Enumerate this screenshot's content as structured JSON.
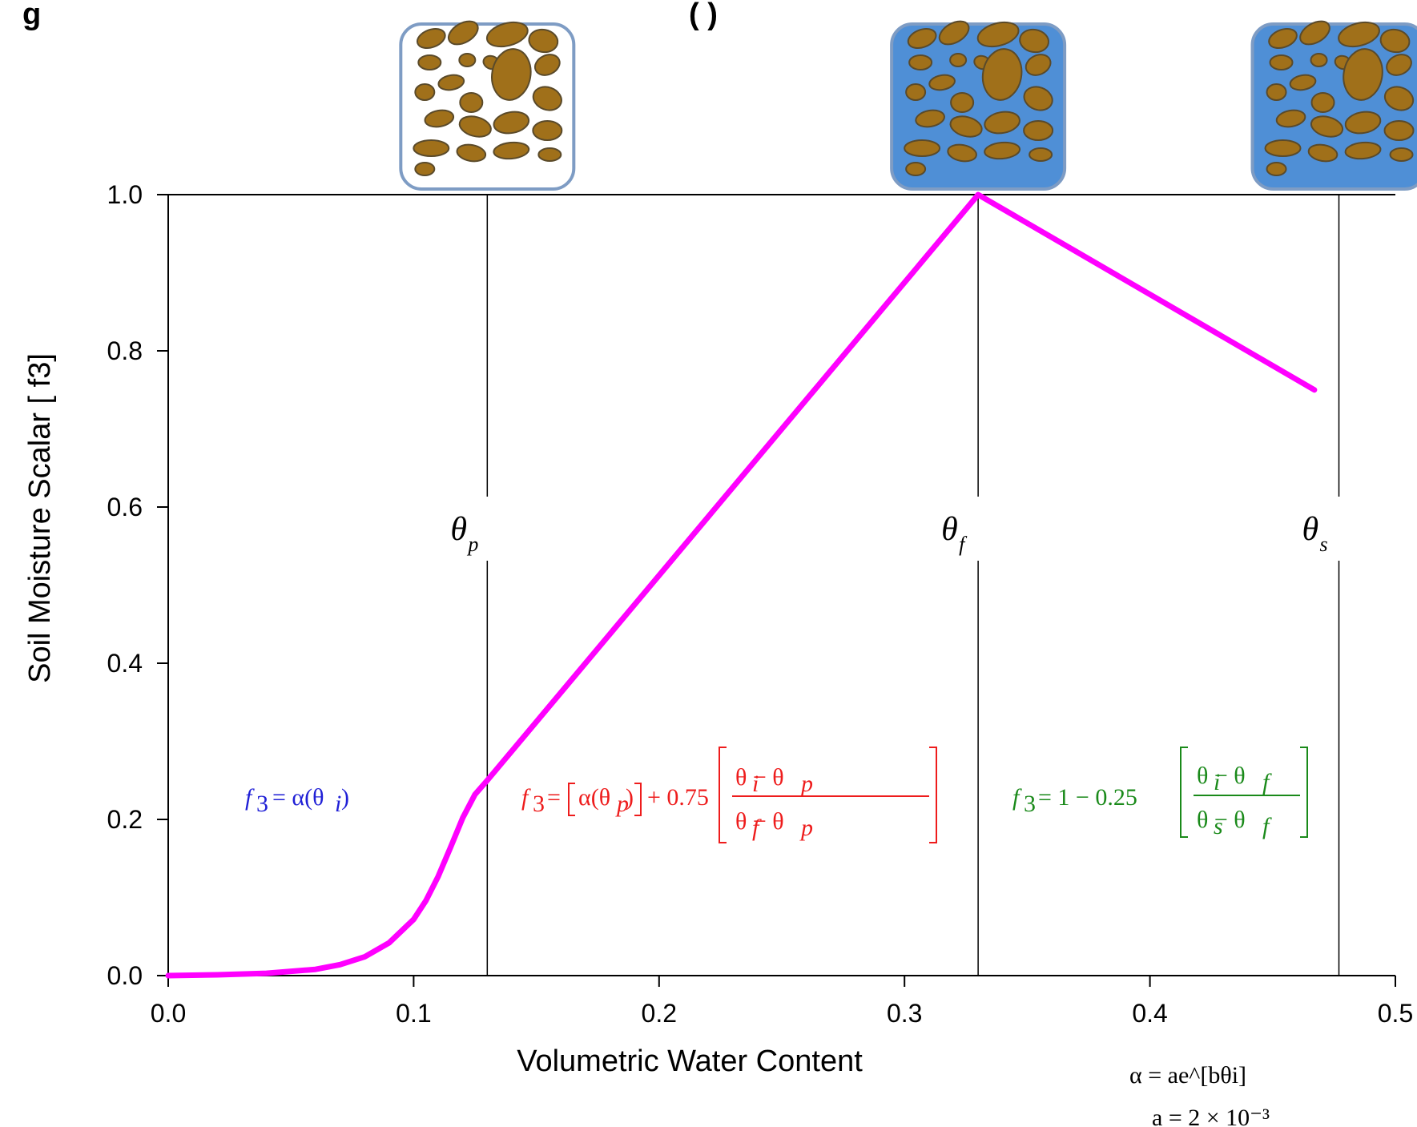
{
  "title_fragment": "g",
  "title_fragment_paren": "(        )",
  "chart_data": {
    "type": "line",
    "xlabel": "Volumetric Water Content",
    "ylabel": "Soil Moisture Scalar  [ f3]",
    "xlim": [
      0,
      0.5
    ],
    "ylim": [
      0,
      1.0
    ],
    "x_ticks": [
      "0.0",
      "0.1",
      "0.2",
      "0.3",
      "0.4",
      "0.5"
    ],
    "y_ticks": [
      "0.0",
      "0.2",
      "0.4",
      "0.6",
      "0.8",
      "1.0"
    ],
    "grid": false,
    "series": [
      {
        "color": "#ff00ff",
        "x": [
          0.0,
          0.02,
          0.04,
          0.06,
          0.07,
          0.08,
          0.09,
          0.1,
          0.105,
          0.11,
          0.115,
          0.12,
          0.125,
          0.13,
          0.33,
          0.467
        ],
        "y": [
          0.0,
          0.001,
          0.003,
          0.008,
          0.014,
          0.024,
          0.042,
          0.072,
          0.096,
          0.127,
          0.164,
          0.202,
          0.232,
          0.25,
          1.0,
          0.75
        ]
      }
    ],
    "thresholds": [
      {
        "x": 0.13,
        "symbol": "θ",
        "subscript": "p"
      },
      {
        "x": 0.33,
        "symbol": "θ",
        "subscript": "f"
      },
      {
        "x": 0.477,
        "symbol": "θ",
        "subscript": "s"
      }
    ],
    "equations": {
      "blue": {
        "color": "#1f1fd6",
        "text": "f3 = α(θi)"
      },
      "red": {
        "color": "#ee1c1c",
        "text": "f3 = [α(θp)] + 0.75[(θi − θp)/(θf − θp)]"
      },
      "green": {
        "color": "#1a8a1a",
        "text": "f3 = 1 − 0.25[(θi − θf)/(θs − θf)]"
      }
    },
    "notes": [
      "α = ae^[bθi]",
      "a = 2 × 10⁻³"
    ]
  },
  "images": [
    {
      "name": "dry-soil-icon",
      "x": 0.13,
      "water": "#ffffff"
    },
    {
      "name": "field-capacity-soil-icon",
      "x": 0.33,
      "water": "#4f8fd6"
    },
    {
      "name": "saturated-soil-icon",
      "x": 0.477,
      "water": "#4f8fd6"
    }
  ],
  "colors": {
    "soil": "#a0701a",
    "soil_edge": "#5a4a2a",
    "frame": "#7e9cc4"
  }
}
